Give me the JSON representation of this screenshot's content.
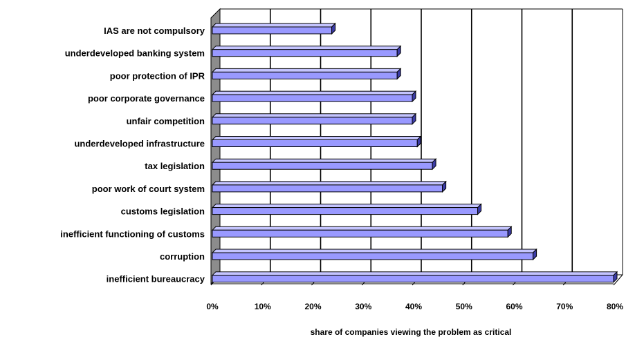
{
  "chart_data": {
    "type": "bar",
    "orientation": "horizontal",
    "three_d": true,
    "categories": [
      "IAS are not compulsory",
      "underdeveloped banking system",
      "poor protection of IPR",
      "poor corporate governance",
      "unfair competition",
      "underdeveloped infrastructure",
      "tax legislation",
      "poor work of court system",
      "customs legislation",
      "inefficient functioning of customs",
      "corruption",
      "inefficient bureaucracy"
    ],
    "values": [
      24,
      37,
      37,
      40,
      40,
      41,
      44,
      46,
      53,
      59,
      64,
      80
    ],
    "xlabel": "share of companies viewing the problem as critical",
    "ylabel": "",
    "xlim": [
      0,
      80
    ],
    "xticks": [
      "0%",
      "10%",
      "20%",
      "30%",
      "40%",
      "50%",
      "60%",
      "70%",
      "80%"
    ],
    "grid": "vertical",
    "legend": "none",
    "colors": {
      "bar_front": "#9999ff",
      "bar_top": "#c4c4ff",
      "bar_end": "#3c3ca6",
      "bar_outline": "#000000",
      "side_wall": "#8c8c8c",
      "gridline": "#000000"
    }
  }
}
